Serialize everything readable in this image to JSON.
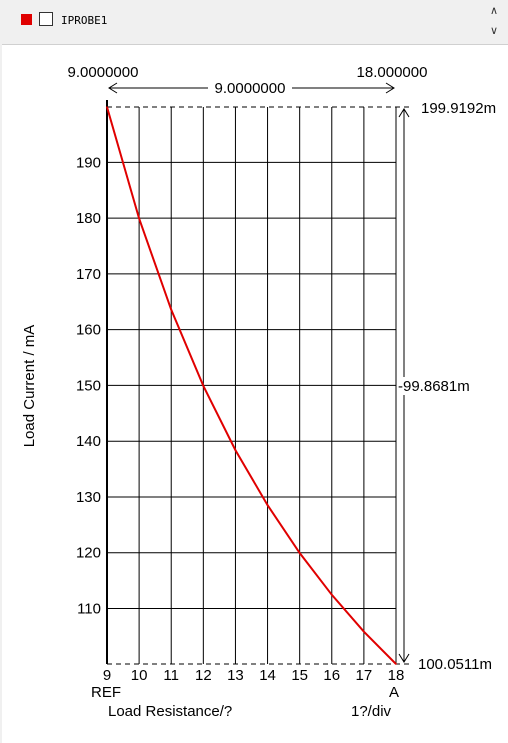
{
  "legend": {
    "label": "IPROBE1",
    "color": "#e00000",
    "checked": false
  },
  "scroll": {
    "up_icon": "chevron-up-icon",
    "down_icon": "chevron-down-icon"
  },
  "cursor": {
    "left_value": "9.0000000",
    "right_value": "18.000000",
    "delta_value": "9.0000000",
    "top_value": "199.9192m",
    "mid_value": "-99.8681m",
    "bottom_value": "100.0511m"
  },
  "axes": {
    "ylabel": "Load Current  / mA",
    "xlabel": "Load Resistance/?",
    "x_unit": "1?/div",
    "ref_label": "REF",
    "a_label": "A"
  },
  "chart_data": {
    "type": "line",
    "xlabel": "Load Resistance/?",
    "ylabel": "Load Current  / mA",
    "xlim": [
      9,
      18
    ],
    "ylim": [
      100.0511,
      199.9192
    ],
    "x_ticks": [
      "9",
      "10",
      "11",
      "12",
      "13",
      "14",
      "15",
      "16",
      "17",
      "18"
    ],
    "y_ticks": [
      "110",
      "120",
      "130",
      "140",
      "150",
      "160",
      "170",
      "180",
      "190"
    ],
    "grid": true,
    "series": [
      {
        "name": "IPROBE1",
        "color": "#e00000",
        "x": [
          9,
          10,
          11,
          12,
          13,
          14,
          15,
          16,
          17,
          18
        ],
        "y": [
          199.92,
          179.93,
          163.57,
          149.94,
          138.41,
          128.52,
          119.95,
          112.45,
          105.84,
          100.05
        ]
      }
    ]
  }
}
